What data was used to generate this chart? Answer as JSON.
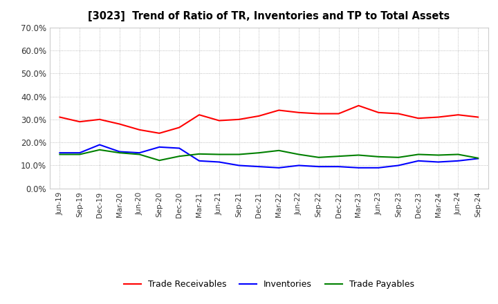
{
  "title": "[3023]  Trend of Ratio of TR, Inventories and TP to Total Assets",
  "x_labels": [
    "Jun-19",
    "Sep-19",
    "Dec-19",
    "Mar-20",
    "Jun-20",
    "Sep-20",
    "Dec-20",
    "Mar-21",
    "Jun-21",
    "Sep-21",
    "Dec-21",
    "Mar-22",
    "Jun-22",
    "Sep-22",
    "Dec-22",
    "Mar-23",
    "Jun-23",
    "Sep-23",
    "Dec-23",
    "Mar-24",
    "Jun-24",
    "Sep-24"
  ],
  "trade_receivables": [
    0.31,
    0.29,
    0.3,
    0.28,
    0.255,
    0.24,
    0.265,
    0.32,
    0.295,
    0.3,
    0.315,
    0.34,
    0.33,
    0.325,
    0.325,
    0.36,
    0.33,
    0.325,
    0.305,
    0.31,
    0.32,
    0.31
  ],
  "inventories": [
    0.155,
    0.155,
    0.19,
    0.16,
    0.155,
    0.18,
    0.175,
    0.12,
    0.115,
    0.1,
    0.095,
    0.09,
    0.1,
    0.095,
    0.095,
    0.09,
    0.09,
    0.1,
    0.12,
    0.115,
    0.12,
    0.13
  ],
  "trade_payables": [
    0.148,
    0.148,
    0.168,
    0.155,
    0.148,
    0.122,
    0.14,
    0.15,
    0.148,
    0.148,
    0.155,
    0.165,
    0.148,
    0.135,
    0.14,
    0.145,
    0.138,
    0.135,
    0.148,
    0.145,
    0.148,
    0.132
  ],
  "ylim": [
    0.0,
    0.7
  ],
  "yticks": [
    0.0,
    0.1,
    0.2,
    0.3,
    0.4,
    0.5,
    0.6,
    0.7
  ],
  "color_tr": "#FF0000",
  "color_inv": "#0000FF",
  "color_tp": "#008000",
  "bg_color": "#FFFFFF",
  "grid_color": "#AAAAAA",
  "legend_labels": [
    "Trade Receivables",
    "Inventories",
    "Trade Payables"
  ]
}
